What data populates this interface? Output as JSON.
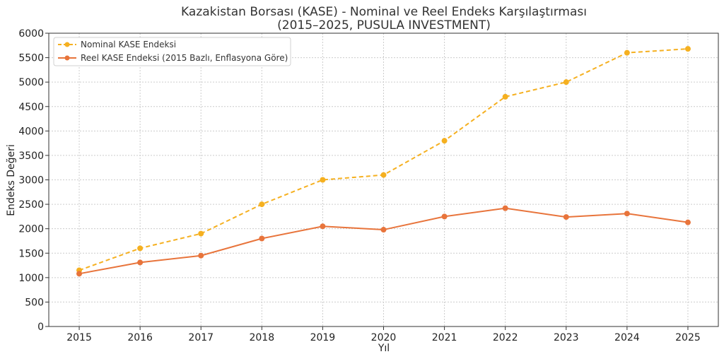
{
  "chart_data": {
    "type": "line",
    "title": "Kazakistan Borsası (KASE) - Nominal ve Reel Endeks Karşılaştırması",
    "subtitle": "(2015–2025, PUSULA INVESTMENT)",
    "xlabel": "Yıl",
    "ylabel": "Endeks Değeri",
    "x": [
      2015,
      2016,
      2017,
      2018,
      2019,
      2020,
      2021,
      2022,
      2023,
      2024,
      2025
    ],
    "x_tick_labels": [
      "2015",
      "2016",
      "2017",
      "2018",
      "2019",
      "2020",
      "2021",
      "2022",
      "2023",
      "2024",
      "2025"
    ],
    "ylim": [
      0,
      6000
    ],
    "xlim": [
      2014.5,
      2025.5
    ],
    "y_ticks": [
      0,
      500,
      1000,
      1500,
      2000,
      2500,
      3000,
      3500,
      4000,
      4500,
      5000,
      5500,
      6000
    ],
    "y_tick_labels": [
      "0",
      "500",
      "1000",
      "1500",
      "2000",
      "2500",
      "3000",
      "3500",
      "4000",
      "4500",
      "5000",
      "5500",
      "6000"
    ],
    "grid": true,
    "legend_position": "top-left",
    "series": [
      {
        "name": "Nominal KASE Endeksi",
        "values": [
          1150,
          1600,
          1900,
          2500,
          3000,
          3100,
          3800,
          4700,
          5000,
          5600,
          5680
        ],
        "color": "#f5b020",
        "line_style": "dashed"
      },
      {
        "name": "Reel KASE Endeksi (2015 Bazlı, Enflasyona Göre)",
        "values": [
          1080,
          1310,
          1450,
          1800,
          2050,
          1980,
          2250,
          2420,
          2240,
          2310,
          2130
        ],
        "color": "#e8743b",
        "line_style": "solid"
      }
    ]
  }
}
